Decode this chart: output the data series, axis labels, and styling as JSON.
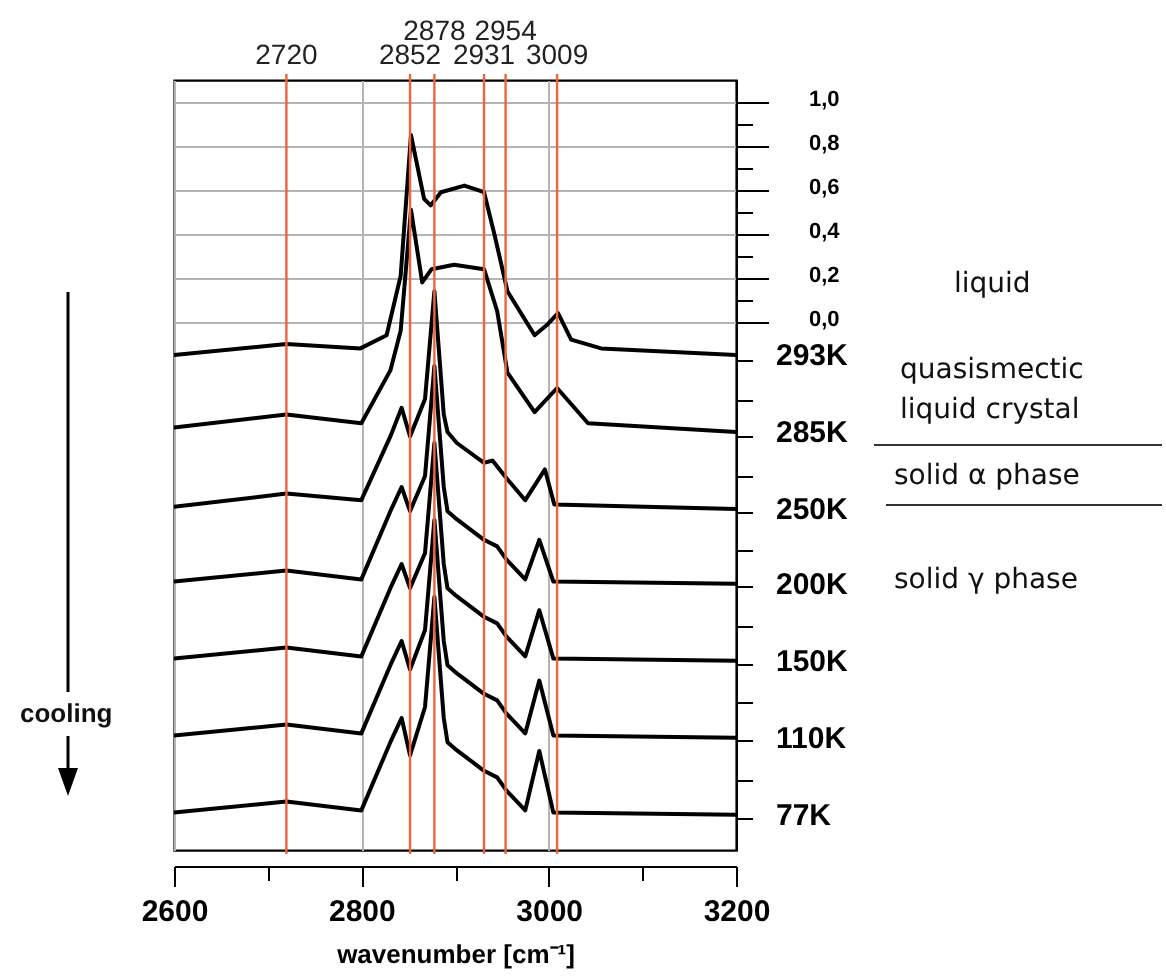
{
  "chart_data": {
    "type": "line",
    "xlabel": "wavenumber [cm⁻¹]",
    "xlim": [
      2600,
      3200
    ],
    "xticks": [
      2600,
      {
        "value": 2700,
        "label": null
      },
      2800,
      {
        "value": 2900,
        "label": null
      },
      3000,
      {
        "value": 3100,
        "label": null
      },
      3200
    ],
    "ylim": [
      -2.4,
      1.1
    ],
    "yticks": [
      {
        "value": 1,
        "label": "1,0"
      },
      {
        "value": 0.9,
        "label": null
      },
      {
        "value": 0.8,
        "label": "0,8"
      },
      {
        "value": 0.7,
        "label": null
      },
      {
        "value": 0.6,
        "label": "0,6"
      },
      {
        "value": 0.5,
        "label": null
      },
      {
        "value": 0.4,
        "label": "0,4"
      },
      {
        "value": 0.3,
        "label": null
      },
      {
        "value": 0.2,
        "label": "0,2"
      },
      {
        "value": 0.1,
        "label": null
      },
      {
        "value": 0,
        "label": "0,0"
      },
      {
        "value": -0.17,
        "label": null
      },
      {
        "value": -0.35,
        "label": null
      },
      {
        "value": -0.52,
        "label": null
      },
      {
        "value": -0.7,
        "label": null
      },
      {
        "value": -0.86,
        "label": null
      },
      {
        "value": -1.04,
        "label": null
      },
      {
        "value": -1.2,
        "label": null
      },
      {
        "value": -1.38,
        "label": null
      },
      {
        "value": -1.55,
        "label": null
      },
      {
        "value": -1.73,
        "label": null
      },
      {
        "value": -1.9,
        "label": null
      },
      {
        "value": -2.08,
        "label": null
      },
      {
        "value": -2.25,
        "label": null
      }
    ],
    "grid": true,
    "legend": "right",
    "series": [
      {
        "name": "293K",
        "color": "#000000",
        "x": [
          2600,
          2720,
          2799,
          2827,
          2842,
          2853,
          2867,
          2874,
          2885,
          2910,
          2931,
          2942,
          2956,
          2985,
          2999,
          3010,
          3024,
          3056,
          3200
        ],
        "values": [
          -0.15,
          -0.1,
          -0.12,
          -0.06,
          0.21,
          0.85,
          0.56,
          0.53,
          0.59,
          0.62,
          0.59,
          0.4,
          0.14,
          -0.06,
          -0.01,
          0.04,
          -0.08,
          -0.12,
          -0.15
        ]
      },
      {
        "name": "285K",
        "color": "#000000",
        "x": [
          2600,
          2720,
          2800,
          2831,
          2842,
          2853,
          2865,
          2875,
          2899,
          2931,
          2945,
          2956,
          2985,
          3009,
          3042,
          3200
        ],
        "values": [
          -0.48,
          -0.42,
          -0.46,
          -0.22,
          -0.04,
          0.51,
          0.18,
          0.24,
          0.26,
          0.24,
          0.05,
          -0.23,
          -0.41,
          -0.3,
          -0.46,
          -0.5
        ]
      },
      {
        "name": "250K",
        "color": "#000000",
        "x": [
          2600,
          2720,
          2800,
          2831,
          2843,
          2852,
          2868,
          2878,
          2888,
          2892,
          2902,
          2931,
          2940,
          2955,
          2975,
          2996,
          3006,
          3200
        ],
        "values": [
          -0.84,
          -0.78,
          -0.81,
          -0.52,
          -0.39,
          -0.52,
          -0.35,
          0.14,
          -0.42,
          -0.5,
          -0.55,
          -0.64,
          -0.63,
          -0.71,
          -0.81,
          -0.67,
          -0.83,
          -0.85
        ]
      },
      {
        "name": "200K",
        "color": "#000000",
        "x": [
          2600,
          2720,
          2800,
          2831,
          2843,
          2852,
          2868,
          2878,
          2888,
          2892,
          2900,
          2931,
          2945,
          2955,
          2975,
          2990,
          3005,
          3200
        ],
        "values": [
          -1.18,
          -1.13,
          -1.17,
          -0.86,
          -0.75,
          -0.86,
          -0.7,
          -0.2,
          -0.75,
          -0.86,
          -0.89,
          -0.99,
          -1.02,
          -1.08,
          -1.17,
          -0.99,
          -1.18,
          -1.19
        ]
      },
      {
        "name": "150K",
        "color": "#000000",
        "x": [
          2600,
          2720,
          2800,
          2831,
          2843,
          2852,
          2868,
          2878,
          2888,
          2892,
          2900,
          2931,
          2945,
          2955,
          2975,
          2990,
          3005,
          3200
        ],
        "values": [
          -1.53,
          -1.48,
          -1.52,
          -1.21,
          -1.1,
          -1.21,
          -1.05,
          -0.55,
          -1.1,
          -1.21,
          -1.24,
          -1.34,
          -1.37,
          -1.43,
          -1.52,
          -1.31,
          -1.53,
          -1.54
        ]
      },
      {
        "name": "110K",
        "color": "#000000",
        "x": [
          2600,
          2720,
          2800,
          2831,
          2843,
          2852,
          2868,
          2878,
          2888,
          2892,
          2900,
          2931,
          2945,
          2955,
          2975,
          2990,
          3005,
          3200
        ],
        "values": [
          -1.88,
          -1.83,
          -1.87,
          -1.56,
          -1.45,
          -1.58,
          -1.4,
          -0.9,
          -1.45,
          -1.56,
          -1.59,
          -1.69,
          -1.72,
          -1.78,
          -1.87,
          -1.63,
          -1.88,
          -1.89
        ]
      },
      {
        "name": "77K",
        "color": "#000000",
        "x": [
          2600,
          2720,
          2800,
          2831,
          2843,
          2852,
          2868,
          2878,
          2888,
          2892,
          2900,
          2931,
          2945,
          2955,
          2975,
          2990,
          3005,
          3200
        ],
        "values": [
          -2.23,
          -2.18,
          -2.22,
          -1.91,
          -1.8,
          -1.97,
          -1.75,
          -1.25,
          -1.8,
          -1.91,
          -1.94,
          -2.04,
          -2.07,
          -2.13,
          -2.22,
          -1.95,
          -2.23,
          -2.24
        ]
      }
    ],
    "ref_lines": [
      {
        "axis": "x",
        "value": 2720,
        "label": "2720",
        "color": "#f0643c"
      },
      {
        "axis": "x",
        "value": 2852,
        "label": "2852",
        "color": "#f0643c"
      },
      {
        "axis": "x",
        "value": 2878,
        "label": "2878",
        "color": "#f0643c"
      },
      {
        "axis": "x",
        "value": 2931,
        "label": "2931",
        "color": "#f0643c"
      },
      {
        "axis": "x",
        "value": 2954,
        "label": "2954",
        "color": "#f0643c"
      },
      {
        "axis": "x",
        "value": 3009,
        "label": "3009",
        "color": "#f0643c"
      }
    ],
    "annotations": [
      "liquid",
      "quasismectic\nliquid crystal",
      "solid α phase",
      "solid γ  phase",
      "cooling"
    ]
  }
}
